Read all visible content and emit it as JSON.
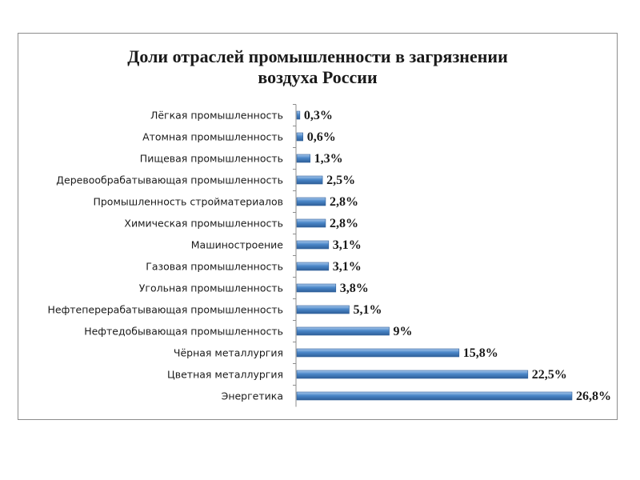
{
  "chart_data": {
    "type": "bar",
    "orientation": "horizontal",
    "title_line1": "Доли отраслей промышленности в загрязнении",
    "title_line2": "воздуха России",
    "categories": [
      "Лёгкая промышленность",
      "Атомная промышленность",
      "Пищевая промышленность",
      "Деревообрабатывающая промышленность",
      "Промышленность стройматериалов",
      "Химическая промышленность",
      "Машиностроение",
      "Газовая промышленность",
      "Угольная промышленность",
      "Нефтеперерабатывающая промышленность",
      "Нефтедобывающая промышленность",
      "Чёрная металлургия",
      "Цветная металлургия",
      "Энергетика"
    ],
    "values": [
      0.3,
      0.6,
      1.3,
      2.5,
      2.8,
      2.8,
      3.1,
      3.1,
      3.8,
      5.1,
      9,
      15.8,
      22.5,
      26.8
    ],
    "value_labels": [
      "0,3%",
      "0,6%",
      "1,3%",
      "2,5%",
      "2,8%",
      "2,8%",
      "3,1%",
      "3,1%",
      "3,8%",
      "5,1%",
      "9%",
      "15,8%",
      "22,5%",
      "26,8%"
    ],
    "xlabel": "",
    "ylabel": "",
    "xlim": [
      0,
      26.8
    ],
    "grid": false,
    "legend": "none",
    "bar_color": "#4a86c8",
    "bar_color_light": "#a9c8ec",
    "bar_color_dark": "#2f5f99"
  }
}
